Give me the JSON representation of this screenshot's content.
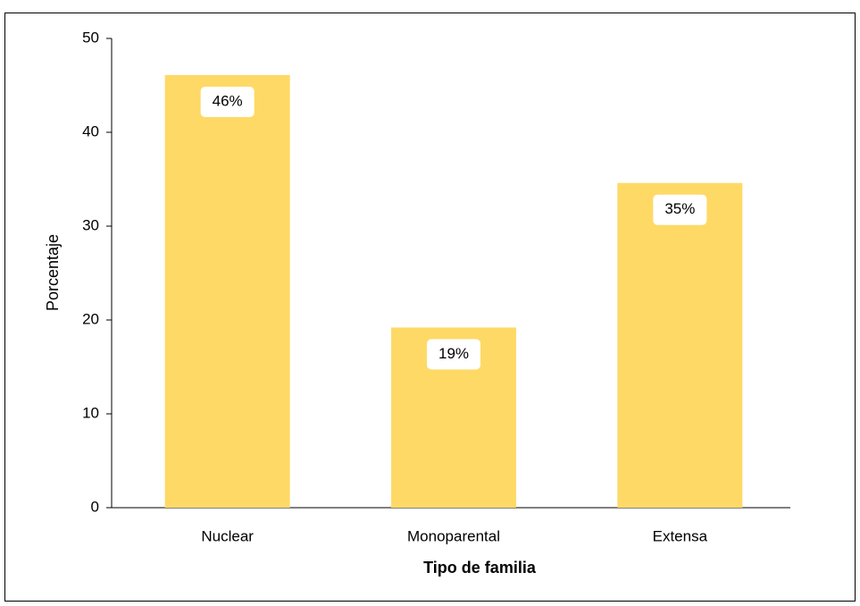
{
  "chart_data": {
    "type": "bar",
    "x_label": "Tipo de familia",
    "y_label": "Porcentaje",
    "categories": [
      "Nuclear",
      "Monoparental",
      "Extensa"
    ],
    "values": [
      46.1,
      19.2,
      34.6
    ],
    "value_labels": [
      "46%",
      "19%",
      "35%"
    ],
    "color": "#fed966",
    "ylim": [
      0,
      50
    ],
    "yticks": [
      0,
      10,
      20,
      30,
      40,
      50
    ],
    "grid": false
  }
}
